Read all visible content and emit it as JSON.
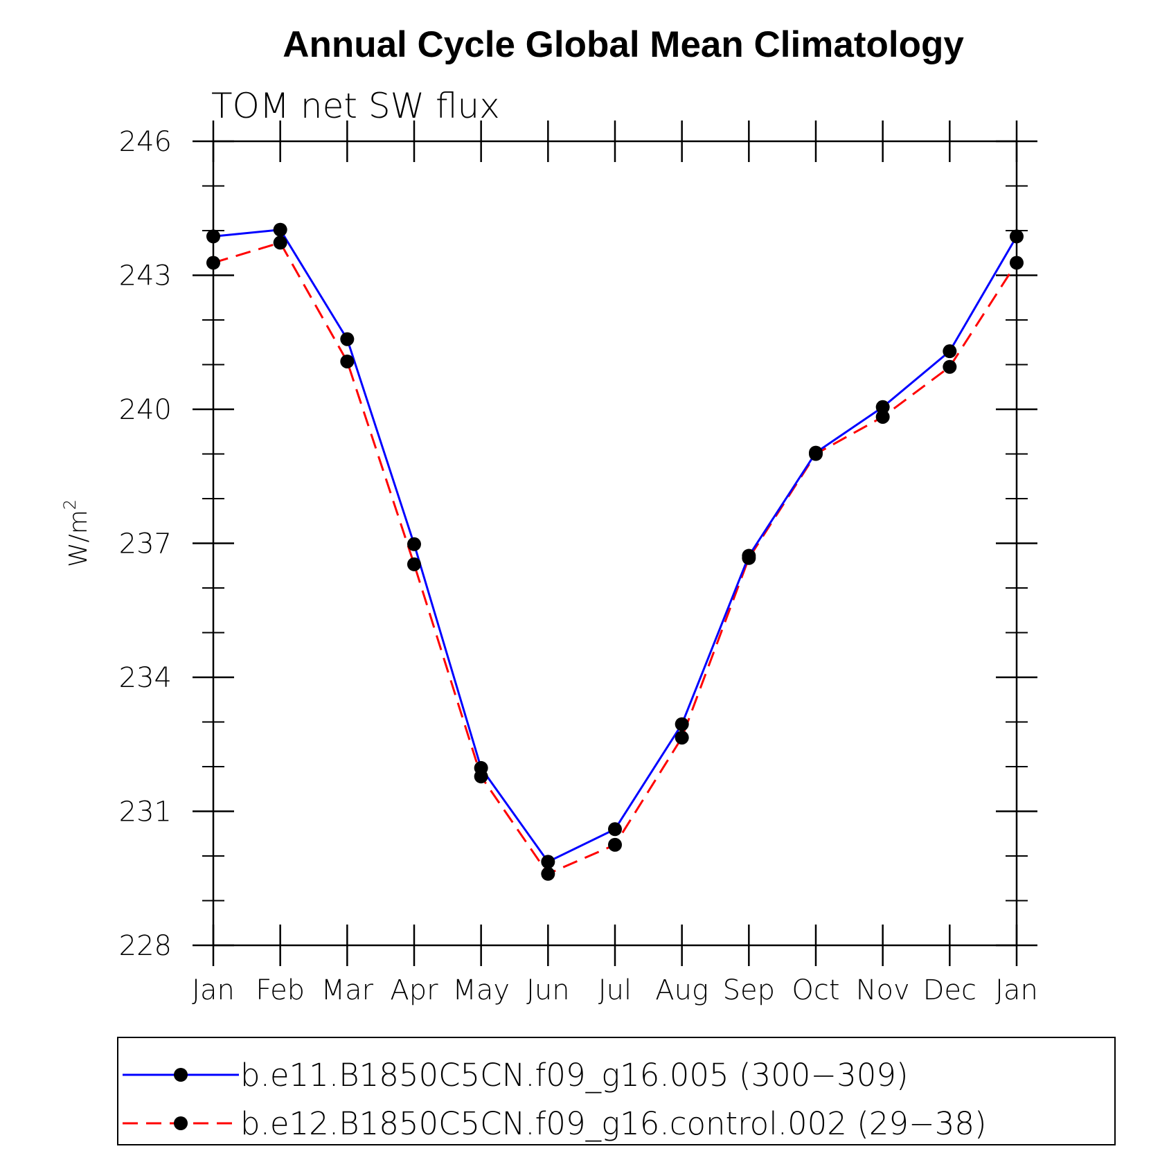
{
  "chart_data": {
    "type": "line",
    "title": "Annual Cycle Global Mean Climatology",
    "subtitle": "TOM net SW flux",
    "ylabel": "W/m",
    "ylabel_sup": "2",
    "xlabel": "",
    "categories": [
      "Jan",
      "Feb",
      "Mar",
      "Apr",
      "May",
      "Jun",
      "Jul",
      "Aug",
      "Sep",
      "Oct",
      "Nov",
      "Dec",
      "Jan"
    ],
    "ylim": [
      228,
      246
    ],
    "yticks": [
      "246",
      "243",
      "240",
      "237",
      "234",
      "231",
      "228"
    ],
    "ytick_values": [
      246,
      243,
      240,
      237,
      234,
      231,
      228
    ],
    "y_minor_step": 1,
    "grid": false,
    "legend_position": "bottom",
    "series": [
      {
        "name": "b.e11.B1850C5CN.f09_g16.005 (300−309)",
        "color": "#0000ff",
        "dash": "solid",
        "marker": "filled-circle",
        "values": [
          243.87,
          244.02,
          241.57,
          236.98,
          231.97,
          229.87,
          230.6,
          232.95,
          236.72,
          239.03,
          240.05,
          241.3,
          243.87
        ]
      },
      {
        "name": "b.e12.B1850C5CN.f09_g16.control.002 (29−38)",
        "color": "#ff0000",
        "dash": "dashed",
        "marker": "filled-circle",
        "values": [
          243.28,
          243.73,
          241.07,
          236.53,
          231.78,
          229.6,
          230.25,
          232.65,
          236.67,
          239.0,
          239.83,
          240.95,
          243.28
        ]
      }
    ]
  }
}
